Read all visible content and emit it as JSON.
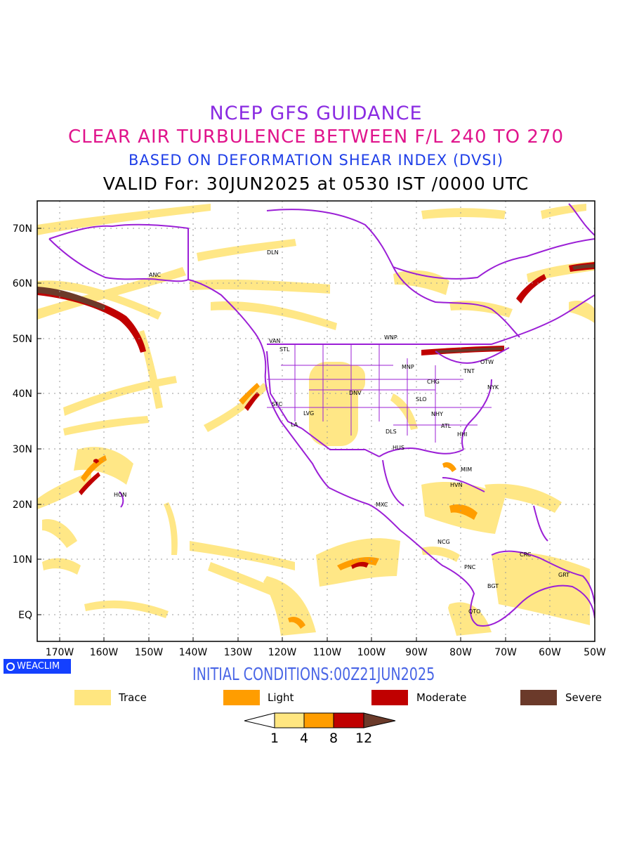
{
  "titles": {
    "line1": "NCEP GFS GUIDANCE",
    "line2": "CLEAR AIR TURBULENCE BETWEEN F/L 240 TO 270",
    "line3": "BASED ON DEFORMATION SHEAR INDEX (DVSI)",
    "line4": "VALID For: 30JUN2025 at 0530 IST /0000 UTC"
  },
  "initial_conditions": "INITIAL CONDITIONS:00Z21JUN2025",
  "badge": "WEACLIM",
  "map": {
    "lat_labels": [
      "70N",
      "60N",
      "50N",
      "40N",
      "30N",
      "20N",
      "10N",
      "EQ"
    ],
    "lon_labels": [
      "170W",
      "160W",
      "150W",
      "140W",
      "130W",
      "120W",
      "110W",
      "100W",
      "90W",
      "80W",
      "70W",
      "60W",
      "50W"
    ],
    "stations": [
      {
        "id": "ANC"
      },
      {
        "id": "DLN"
      },
      {
        "id": "VAN"
      },
      {
        "id": "STL"
      },
      {
        "id": "WNP"
      },
      {
        "id": "MNP"
      },
      {
        "id": "OTW"
      },
      {
        "id": "TNT"
      },
      {
        "id": "CHG"
      },
      {
        "id": "NYK"
      },
      {
        "id": "SFC"
      },
      {
        "id": "DNV"
      },
      {
        "id": "LVG"
      },
      {
        "id": "LA"
      },
      {
        "id": "SLO"
      },
      {
        "id": "NHY"
      },
      {
        "id": "ATL"
      },
      {
        "id": "DLS"
      },
      {
        "id": "HHI"
      },
      {
        "id": "HUS"
      },
      {
        "id": "MIM"
      },
      {
        "id": "HVN"
      },
      {
        "id": "HON"
      },
      {
        "id": "MXC"
      },
      {
        "id": "NCG"
      },
      {
        "id": "PNC"
      },
      {
        "id": "CRC"
      },
      {
        "id": "GRT"
      },
      {
        "id": "BGT"
      },
      {
        "id": "QTO"
      }
    ]
  },
  "legend": [
    {
      "label": "Trace",
      "color": "#ffe680"
    },
    {
      "label": "Light",
      "color": "#ff9d00"
    },
    {
      "label": "Moderate",
      "color": "#c00000"
    },
    {
      "label": "Severe",
      "color": "#6b3a2a"
    }
  ],
  "colorbar": {
    "ticks": [
      "1",
      "4",
      "8",
      "12"
    ]
  }
}
